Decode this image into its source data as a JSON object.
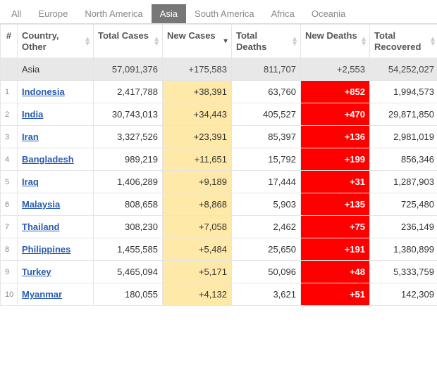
{
  "tabs": [
    {
      "label": "All",
      "active": false
    },
    {
      "label": "Europe",
      "active": false
    },
    {
      "label": "North America",
      "active": false
    },
    {
      "label": "Asia",
      "active": true
    },
    {
      "label": "South America",
      "active": false
    },
    {
      "label": "Africa",
      "active": false
    },
    {
      "label": "Oceania",
      "active": false
    }
  ],
  "columns": [
    {
      "label": "#",
      "class": "col-num-h",
      "sort": "none"
    },
    {
      "label": "Country, Other",
      "class": "col-country",
      "sort": "both"
    },
    {
      "label": "Total Cases",
      "class": "col-std",
      "sort": "both"
    },
    {
      "label": "New Cases",
      "class": "col-std",
      "sort": "desc"
    },
    {
      "label": "Total Deaths",
      "class": "col-std",
      "sort": "both"
    },
    {
      "label": "New Deaths",
      "class": "col-std",
      "sort": "both"
    },
    {
      "label": "Total Recovered",
      "class": "col-std",
      "sort": "both"
    }
  ],
  "summary": {
    "label": "Asia",
    "total_cases": "57,091,376",
    "new_cases": "+175,583",
    "total_deaths": "811,707",
    "new_deaths": "+2,553",
    "total_recovered": "54,252,027"
  },
  "rows": [
    {
      "n": "1",
      "country": "Indonesia",
      "total_cases": "2,417,788",
      "new_cases": "+38,391",
      "total_deaths": "63,760",
      "new_deaths": "+852",
      "total_recovered": "1,994,573"
    },
    {
      "n": "2",
      "country": "India",
      "total_cases": "30,743,013",
      "new_cases": "+34,443",
      "total_deaths": "405,527",
      "new_deaths": "+470",
      "total_recovered": "29,871,850"
    },
    {
      "n": "3",
      "country": "Iran",
      "total_cases": "3,327,526",
      "new_cases": "+23,391",
      "total_deaths": "85,397",
      "new_deaths": "+136",
      "total_recovered": "2,981,019"
    },
    {
      "n": "4",
      "country": "Bangladesh",
      "total_cases": "989,219",
      "new_cases": "+11,651",
      "total_deaths": "15,792",
      "new_deaths": "+199",
      "total_recovered": "856,346"
    },
    {
      "n": "5",
      "country": "Iraq",
      "total_cases": "1,406,289",
      "new_cases": "+9,189",
      "total_deaths": "17,444",
      "new_deaths": "+31",
      "total_recovered": "1,287,903"
    },
    {
      "n": "6",
      "country": "Malaysia",
      "total_cases": "808,658",
      "new_cases": "+8,868",
      "total_deaths": "5,903",
      "new_deaths": "+135",
      "total_recovered": "725,480"
    },
    {
      "n": "7",
      "country": "Thailand",
      "total_cases": "308,230",
      "new_cases": "+7,058",
      "total_deaths": "2,462",
      "new_deaths": "+75",
      "total_recovered": "236,149"
    },
    {
      "n": "8",
      "country": "Philippines",
      "total_cases": "1,455,585",
      "new_cases": "+5,484",
      "total_deaths": "25,650",
      "new_deaths": "+191",
      "total_recovered": "1,380,899"
    },
    {
      "n": "9",
      "country": "Turkey",
      "total_cases": "5,465,094",
      "new_cases": "+5,171",
      "total_deaths": "50,096",
      "new_deaths": "+48",
      "total_recovered": "5,333,759"
    },
    {
      "n": "10",
      "country": "Myanmar",
      "total_cases": "180,055",
      "new_cases": "+4,132",
      "total_deaths": "3,621",
      "new_deaths": "+51",
      "total_recovered": "142,309"
    }
  ],
  "colors": {
    "tab_active_bg": "#777777",
    "new_cases_bg": "#ffe9a8",
    "new_deaths_bg": "#ff0000",
    "summary_bg": "#e8e8e8",
    "link_color": "#2a5db0",
    "border_color": "#e5e5e5"
  }
}
